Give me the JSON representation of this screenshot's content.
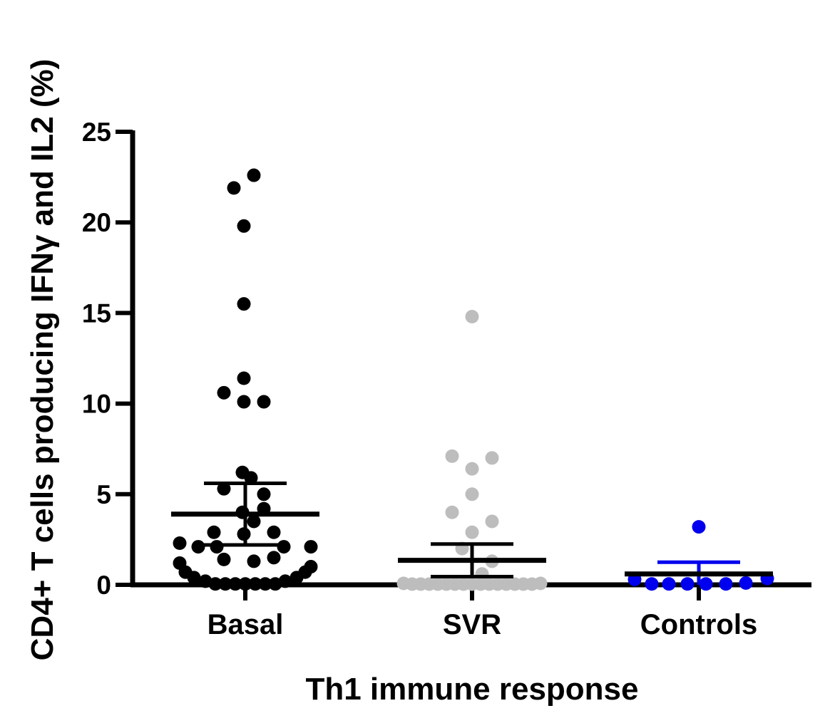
{
  "chart_data": {
    "type": "scatter",
    "title": "",
    "xlabel": "Th1 immune response",
    "ylabel": "CD4+ T cells producing IFNγ and IL2 (%)",
    "ylim": [
      0,
      25
    ],
    "yticks": [
      "0",
      "5",
      "10",
      "15",
      "20",
      "25"
    ],
    "yticks_values": [
      0,
      5,
      10,
      15,
      20,
      25
    ],
    "grid": false,
    "legend": "none",
    "categories": [
      "Basal",
      "SVR",
      "Controls"
    ],
    "series": [
      {
        "category": "Basal",
        "color": "#000000",
        "mean": 3.9,
        "error_low": 2.2,
        "error_high": 5.6,
        "points": [
          {
            "dx": 12,
            "y": 22.6
          },
          {
            "dx": -16,
            "y": 21.9
          },
          {
            "dx": -2,
            "y": 19.8
          },
          {
            "dx": -2,
            "y": 15.5
          },
          {
            "dx": -2,
            "y": 11.4
          },
          {
            "dx": -30,
            "y": 10.6
          },
          {
            "dx": -2,
            "y": 10.1
          },
          {
            "dx": 26,
            "y": 10.1
          },
          {
            "dx": -4,
            "y": 6.2
          },
          {
            "dx": 8,
            "y": 5.9
          },
          {
            "dx": -30,
            "y": 5.3
          },
          {
            "dx": 26,
            "y": 5.0
          },
          {
            "dx": -4,
            "y": 4.0
          },
          {
            "dx": 26,
            "y": 4.2
          },
          {
            "dx": 12,
            "y": 3.5
          },
          {
            "dx": -44,
            "y": 2.9
          },
          {
            "dx": -2,
            "y": 2.8
          },
          {
            "dx": 40,
            "y": 2.9
          },
          {
            "dx": -92,
            "y": 2.3
          },
          {
            "dx": -66,
            "y": 2.1
          },
          {
            "dx": -40,
            "y": 2.1
          },
          {
            "dx": 54,
            "y": 2.1
          },
          {
            "dx": 92,
            "y": 2.1
          },
          {
            "dx": -30,
            "y": 1.4
          },
          {
            "dx": 12,
            "y": 1.3
          },
          {
            "dx": 40,
            "y": 1.5
          },
          {
            "dx": -92,
            "y": 1.2
          },
          {
            "dx": 92,
            "y": 1.0
          },
          {
            "dx": -84,
            "y": 0.7
          },
          {
            "dx": 84,
            "y": 0.7
          },
          {
            "dx": -72,
            "y": 0.4
          },
          {
            "dx": 72,
            "y": 0.4
          },
          {
            "dx": -56,
            "y": 0.2
          },
          {
            "dx": 56,
            "y": 0.2
          },
          {
            "dx": -42,
            "y": 0.05
          },
          {
            "dx": -28,
            "y": 0.05
          },
          {
            "dx": -14,
            "y": 0.05
          },
          {
            "dx": 0,
            "y": 0.05
          },
          {
            "dx": 14,
            "y": 0.05
          },
          {
            "dx": 28,
            "y": 0.05
          },
          {
            "dx": 42,
            "y": 0.05
          }
        ]
      },
      {
        "category": "SVR",
        "color": "#bdbdbd",
        "mean": 1.35,
        "error_low": 0.45,
        "error_high": 2.25,
        "points": [
          {
            "dx": 0,
            "y": 14.8
          },
          {
            "dx": -28,
            "y": 7.1
          },
          {
            "dx": 28,
            "y": 7.0
          },
          {
            "dx": 0,
            "y": 6.4
          },
          {
            "dx": 0,
            "y": 5.0
          },
          {
            "dx": -28,
            "y": 4.0
          },
          {
            "dx": 28,
            "y": 3.5
          },
          {
            "dx": 0,
            "y": 2.9
          },
          {
            "dx": -14,
            "y": 2.0
          },
          {
            "dx": 28,
            "y": 1.3
          },
          {
            "dx": 14,
            "y": 0.6
          },
          {
            "dx": -96,
            "y": 0.08
          },
          {
            "dx": -84,
            "y": 0.04
          },
          {
            "dx": -72,
            "y": 0.04
          },
          {
            "dx": -60,
            "y": 0.04
          },
          {
            "dx": -48,
            "y": 0.04
          },
          {
            "dx": -36,
            "y": 0.04
          },
          {
            "dx": -24,
            "y": 0.04
          },
          {
            "dx": -12,
            "y": 0.04
          },
          {
            "dx": 0,
            "y": 0.04
          },
          {
            "dx": 12,
            "y": 0.04
          },
          {
            "dx": 24,
            "y": 0.04
          },
          {
            "dx": 36,
            "y": 0.04
          },
          {
            "dx": 48,
            "y": 0.04
          },
          {
            "dx": 60,
            "y": 0.04
          },
          {
            "dx": 72,
            "y": 0.04
          },
          {
            "dx": 84,
            "y": 0.04
          },
          {
            "dx": 96,
            "y": 0.08
          }
        ]
      },
      {
        "category": "Controls",
        "color": "#0000ee",
        "mean": 0.6,
        "error_low": 0.0,
        "error_high": 1.25,
        "points": [
          {
            "dx": 0,
            "y": 3.2
          },
          {
            "dx": -90,
            "y": 0.3
          },
          {
            "dx": 96,
            "y": 0.35
          },
          {
            "dx": -66,
            "y": 0.05
          },
          {
            "dx": -42,
            "y": 0.05
          },
          {
            "dx": -16,
            "y": 0.05
          },
          {
            "dx": 10,
            "y": 0.05
          },
          {
            "dx": 38,
            "y": 0.05
          },
          {
            "dx": 66,
            "y": 0.1
          }
        ]
      }
    ]
  }
}
